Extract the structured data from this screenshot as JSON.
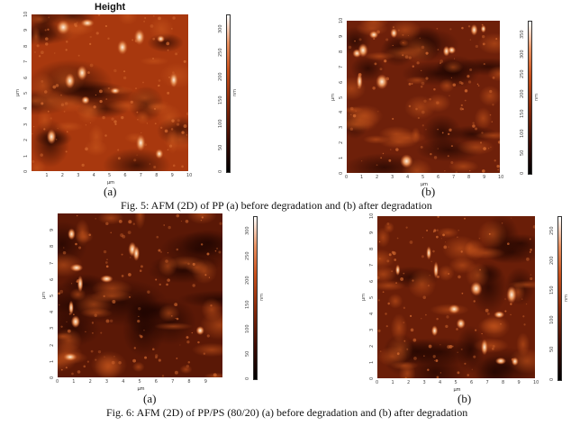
{
  "figures": [
    {
      "caption": "Fig. 5: AFM (2D) of PP (a) before degradation and (b) after degradation",
      "panels": [
        {
          "label": "(a)",
          "title": "Height",
          "x_axis_label": "µm",
          "y_axis_label": "µm",
          "x_ticks": [
            "1",
            "2",
            "3",
            "4",
            "5",
            "6",
            "7",
            "8",
            "9",
            "10"
          ],
          "y_ticks": [
            "0",
            "1",
            "2",
            "3",
            "4",
            "5",
            "6",
            "7",
            "8",
            "9",
            "10"
          ],
          "colorbar_ticks": [
            "0",
            "50",
            "100",
            "150",
            "200",
            "250",
            "300"
          ],
          "colorbar_unit": "nm",
          "base_color": "#a8380e"
        },
        {
          "label": "(b)",
          "title": "",
          "x_axis_label": "µm",
          "y_axis_label": "µm",
          "x_ticks": [
            "0",
            "1",
            "2",
            "3",
            "4",
            "5",
            "6",
            "7",
            "8",
            "9",
            "10"
          ],
          "y_ticks": [
            "0",
            "1",
            "2",
            "3",
            "4",
            "5",
            "6",
            "7",
            "8",
            "9",
            "10"
          ],
          "colorbar_ticks": [
            "0",
            "50",
            "100",
            "150",
            "200",
            "250",
            "300",
            "350"
          ],
          "colorbar_unit": "nm",
          "base_color": "#6e200a"
        }
      ]
    },
    {
      "caption": "Fig. 6: AFM (2D) of PP/PS (80/20) (a) before degradation and (b) after degradation",
      "panels": [
        {
          "label": "(a)",
          "title": "",
          "x_axis_label": "µm",
          "y_axis_label": "µm",
          "x_ticks": [
            "0",
            "1",
            "2",
            "3",
            "4",
            "5",
            "6",
            "7",
            "8",
            "9"
          ],
          "y_ticks": [
            "0",
            "1",
            "2",
            "3",
            "4",
            "5",
            "6",
            "7",
            "8",
            "9"
          ],
          "colorbar_ticks": [
            "0",
            "50",
            "100",
            "150",
            "200",
            "250",
            "300"
          ],
          "colorbar_unit": "nm",
          "base_color": "#5a1806"
        },
        {
          "label": "(b)",
          "title": "",
          "x_axis_label": "µm",
          "y_axis_label": "µm",
          "x_ticks": [
            "0",
            "1",
            "2",
            "3",
            "4",
            "5",
            "6",
            "7",
            "8",
            "9",
            "10"
          ],
          "y_ticks": [
            "0",
            "1",
            "2",
            "3",
            "4",
            "5",
            "6",
            "7",
            "8",
            "9",
            "10"
          ],
          "colorbar_ticks": [
            "0",
            "50",
            "100",
            "150",
            "200",
            "250"
          ],
          "colorbar_unit": "nm",
          "base_color": "#6a1e08"
        }
      ]
    }
  ]
}
